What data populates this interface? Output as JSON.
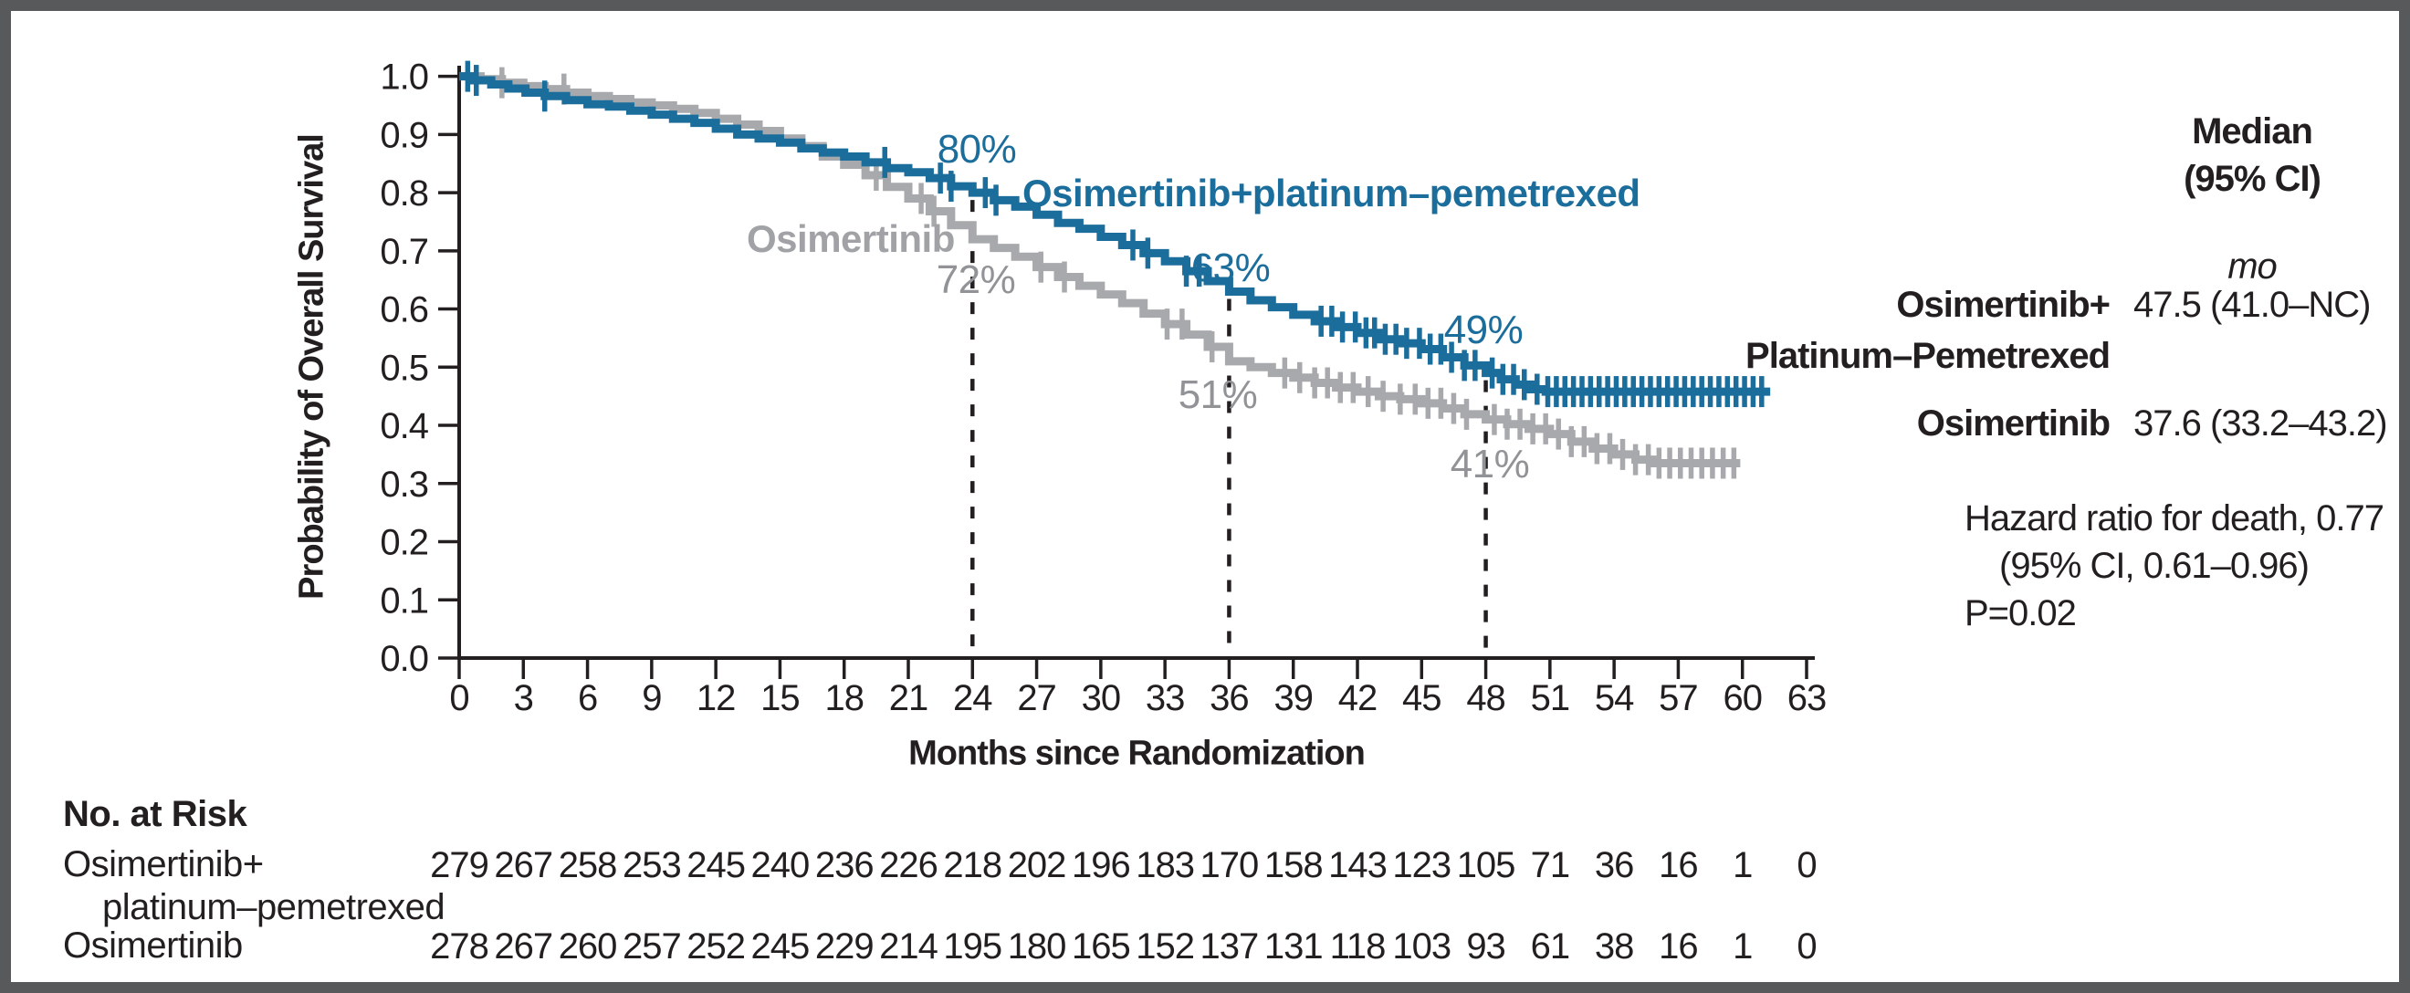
{
  "figure": {
    "background": "#ffffff",
    "border_color": "#58595b",
    "ink_color": "#231f20"
  },
  "chart_data": {
    "type": "line",
    "subtype": "kaplan-meier-step",
    "title": "",
    "xlabel": "Months since Randomization",
    "ylabel": "Probability of Overall Survival",
    "xlim": [
      0,
      63
    ],
    "ylim": [
      0.0,
      1.0
    ],
    "grid": false,
    "xticks": [
      0,
      3,
      6,
      9,
      12,
      15,
      18,
      21,
      24,
      27,
      30,
      33,
      36,
      39,
      42,
      45,
      48,
      51,
      54,
      57,
      60,
      63
    ],
    "x_tick_labels": [
      "0",
      "3",
      "6",
      "9",
      "12",
      "15",
      "18",
      "21",
      "24",
      "27",
      "30",
      "33",
      "36",
      "39",
      "42",
      "45",
      "48",
      "51",
      "54",
      "57",
      "60",
      "63"
    ],
    "yticks": [
      0.0,
      0.1,
      0.2,
      0.3,
      0.4,
      0.5,
      0.6,
      0.7,
      0.8,
      0.9,
      1.0
    ],
    "y_tick_labels": [
      "0.0",
      "0.1",
      "0.2",
      "0.3",
      "0.4",
      "0.5",
      "0.6",
      "0.7",
      "0.8",
      "0.9",
      "1.0"
    ],
    "series": [
      {
        "name": "Osimertinib+platinum–pemetrexed",
        "color": "#1b6d9b",
        "end_month": 61.3,
        "points": [
          [
            0,
            1.0
          ],
          [
            0.7,
            0.993
          ],
          [
            1.5,
            0.986
          ],
          [
            2.3,
            0.979
          ],
          [
            3.1,
            0.972
          ],
          [
            4,
            0.966
          ],
          [
            5,
            0.959
          ],
          [
            6,
            0.952
          ],
          [
            7,
            0.948
          ],
          [
            8,
            0.941
          ],
          [
            9,
            0.934
          ],
          [
            10,
            0.927
          ],
          [
            11,
            0.92
          ],
          [
            12,
            0.91
          ],
          [
            13,
            0.9
          ],
          [
            14,
            0.893
          ],
          [
            15,
            0.886
          ],
          [
            16,
            0.876
          ],
          [
            17,
            0.869
          ],
          [
            18,
            0.862
          ],
          [
            19,
            0.852
          ],
          [
            20,
            0.842
          ],
          [
            21,
            0.835
          ],
          [
            22,
            0.825
          ],
          [
            23,
            0.811
          ],
          [
            24,
            0.8
          ],
          [
            25,
            0.787
          ],
          [
            26,
            0.776
          ],
          [
            27,
            0.762
          ],
          [
            28,
            0.748
          ],
          [
            29,
            0.738
          ],
          [
            30,
            0.724
          ],
          [
            31,
            0.71
          ],
          [
            32,
            0.696
          ],
          [
            33,
            0.682
          ],
          [
            34,
            0.665
          ],
          [
            35,
            0.648
          ],
          [
            36,
            0.63
          ],
          [
            37,
            0.615
          ],
          [
            38,
            0.603
          ],
          [
            39,
            0.59
          ],
          [
            40,
            0.579
          ],
          [
            41,
            0.569
          ],
          [
            42,
            0.559
          ],
          [
            43,
            0.548
          ],
          [
            44,
            0.541
          ],
          [
            45,
            0.531
          ],
          [
            46,
            0.517
          ],
          [
            47,
            0.503
          ],
          [
            48,
            0.49
          ],
          [
            48.7,
            0.479
          ],
          [
            49.4,
            0.47
          ],
          [
            50.1,
            0.462
          ],
          [
            50.8,
            0.458
          ]
        ],
        "censor_months": [
          0.4,
          0.8,
          4.0,
          19.9,
          22.5,
          23.0,
          24.6,
          25.1,
          31.5,
          32.2,
          34.0,
          34.6,
          40.3,
          40.8,
          41.3,
          41.9,
          42.4,
          42.8,
          43.3,
          43.8,
          44.3,
          44.9,
          45.4,
          45.9,
          46.4,
          47.0,
          47.5,
          48.3,
          48.8,
          49.3,
          49.8,
          50.4,
          50.9,
          51.3,
          51.7,
          52.1,
          52.5,
          52.9,
          53.3,
          53.7,
          54.1,
          54.5,
          54.9,
          55.3,
          55.7,
          56.1,
          56.5,
          56.9,
          57.3,
          57.7,
          58.1,
          58.5,
          58.9,
          59.3,
          59.7,
          60.1,
          60.5,
          60.9
        ]
      },
      {
        "name": "Osimertinib",
        "color": "#a7a9ac",
        "end_month": 59.9,
        "points": [
          [
            0,
            1.0
          ],
          [
            1,
            0.995
          ],
          [
            2,
            0.989
          ],
          [
            3,
            0.983
          ],
          [
            4,
            0.978
          ],
          [
            5,
            0.972
          ],
          [
            6,
            0.966
          ],
          [
            7,
            0.961
          ],
          [
            8,
            0.955
          ],
          [
            9,
            0.95
          ],
          [
            10,
            0.944
          ],
          [
            11,
            0.937
          ],
          [
            12,
            0.927
          ],
          [
            13,
            0.917
          ],
          [
            14,
            0.906
          ],
          [
            15,
            0.893
          ],
          [
            16,
            0.88
          ],
          [
            17,
            0.862
          ],
          [
            18,
            0.848
          ],
          [
            19,
            0.83
          ],
          [
            20,
            0.81
          ],
          [
            21,
            0.79
          ],
          [
            22,
            0.768
          ],
          [
            23,
            0.744
          ],
          [
            24,
            0.72
          ],
          [
            25,
            0.705
          ],
          [
            26,
            0.69
          ],
          [
            27,
            0.672
          ],
          [
            28,
            0.655
          ],
          [
            29,
            0.64
          ],
          [
            30,
            0.625
          ],
          [
            31,
            0.61
          ],
          [
            32,
            0.592
          ],
          [
            33,
            0.574
          ],
          [
            34,
            0.556
          ],
          [
            35,
            0.535
          ],
          [
            36,
            0.51
          ],
          [
            37,
            0.5
          ],
          [
            38,
            0.49
          ],
          [
            39,
            0.482
          ],
          [
            40,
            0.473
          ],
          [
            41,
            0.465
          ],
          [
            42,
            0.458
          ],
          [
            43,
            0.45
          ],
          [
            44,
            0.445
          ],
          [
            45,
            0.438
          ],
          [
            46,
            0.429
          ],
          [
            47,
            0.419
          ],
          [
            48,
            0.41
          ],
          [
            49,
            0.402
          ],
          [
            50,
            0.394
          ],
          [
            51,
            0.385
          ],
          [
            52,
            0.372
          ],
          [
            53,
            0.36
          ],
          [
            54,
            0.35
          ],
          [
            55,
            0.341
          ],
          [
            55.8,
            0.335
          ]
        ],
        "censor_months": [
          2.0,
          4.9,
          19.5,
          21.6,
          22.2,
          27.2,
          28.3,
          33.1,
          33.8,
          35.2,
          38.6,
          39.3,
          40.0,
          40.6,
          41.2,
          41.8,
          42.5,
          43.2,
          44.0,
          44.7,
          45.3,
          45.9,
          46.5,
          47.1,
          48.4,
          49.0,
          49.6,
          50.2,
          50.8,
          51.4,
          52.0,
          52.6,
          53.2,
          53.8,
          54.4,
          55.0,
          55.6,
          56.1,
          56.6,
          57.1,
          57.6,
          58.1,
          58.6,
          59.1,
          59.6
        ]
      }
    ],
    "reference_lines": [
      {
        "x": 24,
        "top_value": 0.8
      },
      {
        "x": 36,
        "top_value": 0.63
      },
      {
        "x": 48,
        "top_value": 0.49
      }
    ],
    "milestones": [
      {
        "month": 24,
        "combination": "80%",
        "monotherapy": "72%"
      },
      {
        "month": 36,
        "combination": "63%",
        "monotherapy": "51%"
      },
      {
        "month": 48,
        "combination": "49%",
        "monotherapy": "41%"
      }
    ]
  },
  "right_panel": {
    "header_line1": "Median",
    "header_line2": "(95% CI)",
    "unit": "mo",
    "rows": [
      {
        "name_line1": "Osimertinib+",
        "name_line2": "Platinum–Pemetrexed",
        "value": "47.5 (41.0–NC)"
      },
      {
        "name": "Osimertinib",
        "value": "37.6 (33.2–43.2)"
      }
    ],
    "hr_line1": "Hazard ratio for death, 0.77",
    "hr_line2": "(95% CI, 0.61–0.96)",
    "hr_line3": "P=0.02"
  },
  "risk_table": {
    "title": "No. at Risk",
    "rows": [
      {
        "label_line1": "Osimertinib+",
        "label_line2": "platinum–pemetrexed",
        "values": [
          279,
          267,
          258,
          253,
          245,
          240,
          236,
          226,
          218,
          202,
          196,
          183,
          170,
          158,
          143,
          123,
          105,
          71,
          36,
          16,
          1,
          0
        ]
      },
      {
        "label_line1": "Osimertinib",
        "label_line2": "",
        "values": [
          278,
          267,
          260,
          257,
          252,
          245,
          229,
          214,
          195,
          180,
          165,
          152,
          137,
          131,
          118,
          103,
          93,
          61,
          38,
          16,
          1,
          0
        ]
      }
    ]
  }
}
